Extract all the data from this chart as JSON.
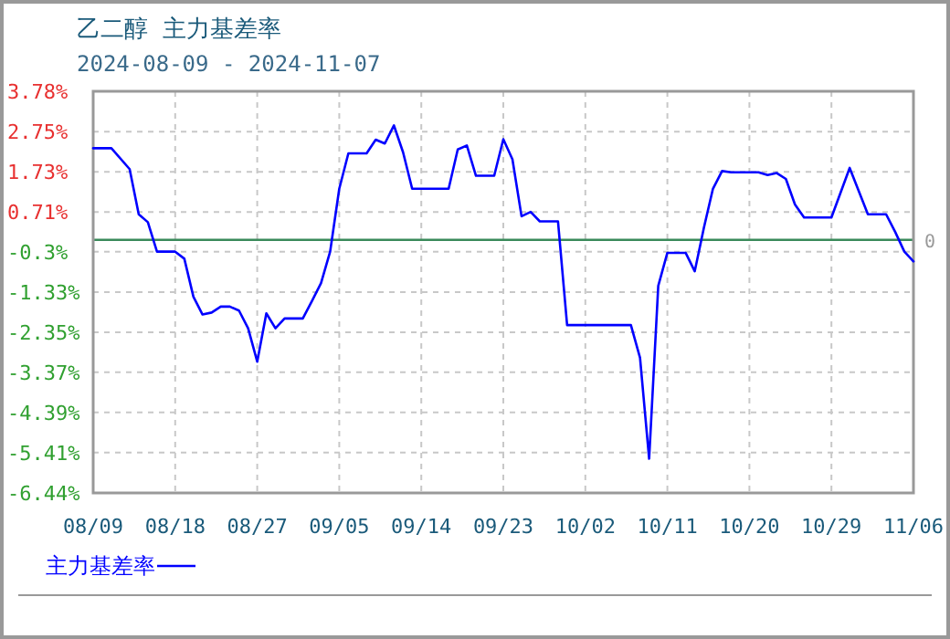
{
  "chart_data": {
    "type": "line",
    "title": "乙二醇  主力基差率",
    "subtitle": "2024-08-09 - 2024-11-07",
    "x": [
      "2024-08-09",
      "2024-08-11",
      "2024-08-13",
      "2024-08-14",
      "2024-08-15",
      "2024-08-16",
      "2024-08-18",
      "2024-08-19",
      "2024-08-20",
      "2024-08-21",
      "2024-08-22",
      "2024-08-23",
      "2024-08-24",
      "2024-08-25",
      "2024-08-26",
      "2024-08-27",
      "2024-08-28",
      "2024-08-29",
      "2024-08-30",
      "2024-09-01",
      "2024-09-02",
      "2024-09-03",
      "2024-09-04",
      "2024-09-05",
      "2024-09-06",
      "2024-09-08",
      "2024-09-09",
      "2024-09-10",
      "2024-09-11",
      "2024-09-12",
      "2024-09-13",
      "2024-09-17",
      "2024-09-18",
      "2024-09-19",
      "2024-09-20",
      "2024-09-22",
      "2024-09-23",
      "2024-09-24",
      "2024-09-25",
      "2024-09-26",
      "2024-09-27",
      "2024-09-29",
      "2024-09-30",
      "2024-10-07",
      "2024-10-08",
      "2024-10-09",
      "2024-10-10",
      "2024-10-11",
      "2024-10-13",
      "2024-10-14",
      "2024-10-15",
      "2024-10-16",
      "2024-10-17",
      "2024-10-18",
      "2024-10-21",
      "2024-10-22",
      "2024-10-23",
      "2024-10-24",
      "2024-10-25",
      "2024-10-26",
      "2024-10-29",
      "2024-10-31",
      "2024-11-02",
      "2024-11-04",
      "2024-11-05",
      "2024-11-06",
      "2024-11-07"
    ],
    "series": [
      {
        "name": "主力基差率",
        "color": "#0000ff",
        "values": [
          2.33,
          2.33,
          1.8,
          0.65,
          0.45,
          -0.3,
          -0.3,
          -0.48,
          -1.45,
          -1.9,
          -1.85,
          -1.7,
          -1.7,
          -1.8,
          -2.25,
          -3.1,
          -1.87,
          -2.25,
          -2.0,
          -2.0,
          -1.56,
          -1.1,
          -0.3,
          1.3,
          2.2,
          2.2,
          2.55,
          2.45,
          2.91,
          2.23,
          1.3,
          1.3,
          2.3,
          2.4,
          1.63,
          1.63,
          2.56,
          2.05,
          0.6,
          0.71,
          0.47,
          0.47,
          -2.17,
          -2.17,
          -3.0,
          -5.57,
          -1.17,
          -0.33,
          -0.33,
          -0.8,
          0.3,
          1.3,
          1.75,
          1.72,
          1.72,
          1.65,
          1.7,
          1.55,
          0.9,
          0.57,
          0.57,
          1.83,
          0.65,
          0.65,
          0.2,
          -0.3,
          -0.55
        ]
      }
    ],
    "xlim": [
      "2024-08-09",
      "2024-11-07"
    ],
    "xticks": [
      {
        "value": "2024-08-09",
        "label": "08/09"
      },
      {
        "value": "2024-08-18",
        "label": "08/18"
      },
      {
        "value": "2024-08-27",
        "label": "08/27"
      },
      {
        "value": "2024-09-05",
        "label": "09/05"
      },
      {
        "value": "2024-09-14",
        "label": "09/14"
      },
      {
        "value": "2024-09-23",
        "label": "09/23"
      },
      {
        "value": "2024-10-02",
        "label": "10/02"
      },
      {
        "value": "2024-10-11",
        "label": "10/11"
      },
      {
        "value": "2024-10-20",
        "label": "10/20"
      },
      {
        "value": "2024-10-29",
        "label": "10/29"
      },
      {
        "value": "2024-11-07",
        "label": "11/06"
      }
    ],
    "ylim": [
      -6.44,
      3.78
    ],
    "yticks": [
      {
        "value": 3.78,
        "label": "3.78%"
      },
      {
        "value": 2.75,
        "label": "2.75%"
      },
      {
        "value": 1.73,
        "label": "1.73%"
      },
      {
        "value": 0.71,
        "label": "0.71%"
      },
      {
        "value": -0.3,
        "label": "-0.3%"
      },
      {
        "value": -1.33,
        "label": "-1.33%"
      },
      {
        "value": -2.35,
        "label": "-2.35%"
      },
      {
        "value": -3.37,
        "label": "-3.37%"
      },
      {
        "value": -4.39,
        "label": "-4.39%"
      },
      {
        "value": -5.41,
        "label": "-5.41%"
      },
      {
        "value": -6.44,
        "label": "-6.44%"
      }
    ],
    "ref_lines": [
      {
        "axis": "y",
        "value": 0,
        "label": "0",
        "color": "#3a8a5a"
      }
    ],
    "grid": true,
    "legend": "bottom left",
    "marker": "none",
    "line_style": "solid"
  }
}
